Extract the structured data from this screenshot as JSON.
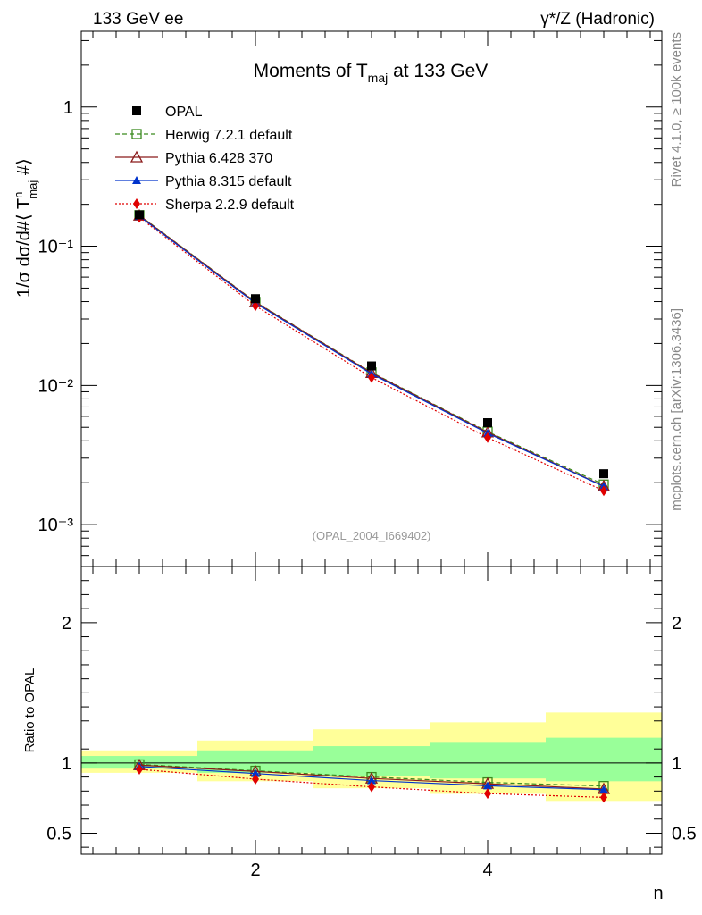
{
  "header": {
    "left": "133 GeV ee",
    "right": "γ*/Z (Hadronic)"
  },
  "side_text": {
    "rivet": "Rivet 4.1.0, ≥ 100k events",
    "mcplots": "mcplots.cern.ch [arXiv:1306.3436]"
  },
  "chart_data": {
    "type": "scatter",
    "title_prefix": "Moments of T",
    "title_sub": "maj",
    "title_suffix": " at 133 GeV",
    "analysis_id": "(OPAL_2004_I669402)",
    "xlabel": "n",
    "ylabel_main": "1/σ  dσ/d#⟨ T",
    "ylabel_sup": "n",
    "ylabel_sub": "maj",
    "ylabel_end": " #⟩",
    "ylabel_ratio": "Ratio to OPAL",
    "xlim": [
      0.5,
      5.5
    ],
    "ylim_main": [
      0.0005,
      3.5
    ],
    "ylim_ratio": [
      0.35,
      2.4
    ],
    "x": [
      1,
      2,
      3,
      4,
      5
    ],
    "x_ticks": [
      2,
      4
    ],
    "x_tick_labels": [
      "2",
      "4"
    ],
    "y_main_tick_labels": [
      "10⁻³",
      "10⁻²",
      "10⁻¹",
      "1"
    ],
    "y_ratio_tick_labels": [
      "0.5",
      "1",
      "2"
    ],
    "data": {
      "name": "OPAL",
      "values": [
        0.168,
        0.042,
        0.0138,
        0.0054,
        0.00232
      ],
      "band_inner": [
        [
          0.96,
          1.05
        ],
        [
          0.93,
          1.09
        ],
        [
          0.91,
          1.12
        ],
        [
          0.89,
          1.15
        ],
        [
          0.87,
          1.18
        ]
      ],
      "band_outer": [
        [
          0.93,
          1.09
        ],
        [
          0.87,
          1.16
        ],
        [
          0.82,
          1.24
        ],
        [
          0.78,
          1.29
        ],
        [
          0.73,
          1.36
        ]
      ]
    },
    "series": [
      {
        "name": "Herwig 7.2.1 default",
        "values": [
          0.167,
          0.0398,
          0.0124,
          0.00465,
          0.00194
        ],
        "ratio": [
          0.99,
          0.945,
          0.9,
          0.862,
          0.836
        ],
        "color": "#3a8a1e",
        "dash": "5,3",
        "marker": "open-square"
      },
      {
        "name": "Pythia 6.428 370",
        "values": [
          0.166,
          0.0396,
          0.0123,
          0.0046,
          0.00189
        ],
        "ratio": [
          0.985,
          0.94,
          0.89,
          0.852,
          0.815
        ],
        "color": "#8b1a1a",
        "dash": "",
        "marker": "open-triangle"
      },
      {
        "name": "Pythia 8.315 default",
        "values": [
          0.164,
          0.039,
          0.0121,
          0.00453,
          0.00188
        ],
        "ratio": [
          0.975,
          0.925,
          0.875,
          0.838,
          0.81
        ],
        "color": "#0033cc",
        "dash": "",
        "marker": "filled-triangle"
      },
      {
        "name": "Sherpa 2.2.9 default",
        "values": [
          0.161,
          0.0373,
          0.0114,
          0.00422,
          0.00175
        ],
        "ratio": [
          0.955,
          0.885,
          0.83,
          0.782,
          0.755
        ],
        "color": "#e00000",
        "dash": "2,2",
        "marker": "filled-diamond"
      }
    ]
  }
}
